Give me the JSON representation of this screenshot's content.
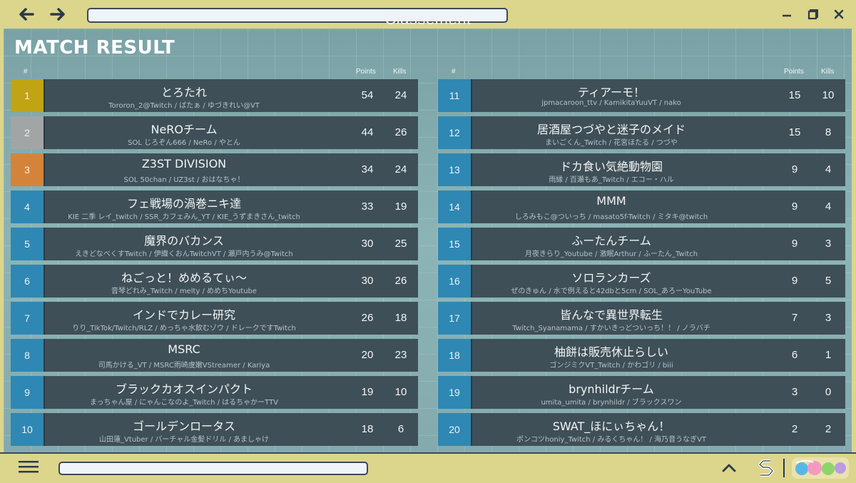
{
  "window": {
    "title": "Classement",
    "back_icon": "arrow-left-icon",
    "forward_icon": "arrow-right-icon",
    "url_value": "",
    "controls": [
      "minimize-icon",
      "maximize-icon",
      "close-icon"
    ]
  },
  "page": {
    "heading": "MATCH RESULT",
    "col_rank": "#",
    "col_points": "Points",
    "col_kills": "Kills"
  },
  "colors": {
    "gold": "#c0a414",
    "silver": "#a2a5a6",
    "bronze": "#d4843a",
    "blue": "#2e88b3"
  },
  "left": [
    {
      "rank": "1",
      "team": "とろたれ",
      "players": "Tororon_2@Twitch / ばたぁ / ゆづきれい@VT",
      "points": "54",
      "kills": "24",
      "color": "gold"
    },
    {
      "rank": "2",
      "team": "NeROチーム",
      "players": "SOL じろぞん666 / NeRo / やとん",
      "points": "44",
      "kills": "26",
      "color": "silver"
    },
    {
      "rank": "3",
      "team": "Z3ST DIVISION",
      "players": "SOL 50chan / UZ3st / おはなちゃ！",
      "points": "34",
      "kills": "24",
      "color": "bronze"
    },
    {
      "rank": "4",
      "team": "フェ戦場の渦巻ニキ達",
      "players": "KIE 二季 レイ_twitch / SSR_カフェみん_YT / KIE_うずまきさん_twitch",
      "points": "33",
      "kills": "19",
      "color": "blue"
    },
    {
      "rank": "5",
      "team": "魔界のバカンス",
      "players": "えきどなべくすTwitch / 伊織くおんTwitchVT / 瀬戸内うみ@Twitch",
      "points": "30",
      "kills": "25",
      "color": "blue"
    },
    {
      "rank": "6",
      "team": "ねごっと！めめるてぃ〜",
      "players": "音琴どれみ_Twitch / melty / めめちYoutube",
      "points": "30",
      "kills": "26",
      "color": "blue"
    },
    {
      "rank": "7",
      "team": "インドでカレー研究",
      "players": "りり_TikTok/Twitch/RLZ / めっちゃ水飲むゾウ / ドレークですTwitch",
      "points": "26",
      "kills": "18",
      "color": "blue"
    },
    {
      "rank": "8",
      "team": "MSRC",
      "players": "司馬かける_VT / MSRC雨崎虞嫩VStreamer / Kariya",
      "points": "20",
      "kills": "23",
      "color": "blue"
    },
    {
      "rank": "9",
      "team": "ブラックカオスインパクト",
      "players": "まっちゃん屋 / にゃんこなのよ_Twitch / はるちゃかーTTV",
      "points": "19",
      "kills": "10",
      "color": "blue"
    },
    {
      "rank": "10",
      "team": "ゴールデンロータス",
      "players": "山田蓮_Vtuber / バーチャル金髪ドリル / あましゃけ",
      "points": "18",
      "kills": "6",
      "color": "blue"
    }
  ],
  "right": [
    {
      "rank": "11",
      "team": "ティアーモ！",
      "players": "jpmacaroon_ttv / KamikitaYuuVT / nako",
      "points": "15",
      "kills": "10",
      "color": "blue"
    },
    {
      "rank": "12",
      "team": "居酒屋つづやと迷子のメイド",
      "players": "まいごくん_Twitch / 花宮ほたる / つづや",
      "points": "15",
      "kills": "8",
      "color": "blue"
    },
    {
      "rank": "13",
      "team": "ドカ食い気絶動物園",
      "players": "雨縁 / 百瀬もあ_Twitch / エコー・ハル",
      "points": "9",
      "kills": "4",
      "color": "blue"
    },
    {
      "rank": "14",
      "team": "MMM",
      "players": "しろみもこ@ついっち / masato5f-Twitch / ミタキ@twitch",
      "points": "9",
      "kills": "4",
      "color": "blue"
    },
    {
      "rank": "15",
      "team": "ふーたんチーム",
      "players": "月夜きらり_Youtube / 激眠Arthur / ふーたん_Twitch",
      "points": "9",
      "kills": "3",
      "color": "blue"
    },
    {
      "rank": "16",
      "team": "ソロランカーズ",
      "players": "ぜのきゅん / 水で例えると42dbと5cm / SOL_あろーYouTube",
      "points": "9",
      "kills": "5",
      "color": "blue"
    },
    {
      "rank": "17",
      "team": "皆んなで異世界転生",
      "players": "Twitch_Syanamama / すかいきっどついっち！！ / ノラバチ",
      "points": "7",
      "kills": "3",
      "color": "blue"
    },
    {
      "rank": "18",
      "team": "柚餅は販売休止らしい",
      "players": "ゴンジミクVT_Twitch / かわゴリ / biii",
      "points": "6",
      "kills": "1",
      "color": "blue"
    },
    {
      "rank": "19",
      "team": "brynhildrチーム",
      "players": "umita_umita / brynhildr / ブラックスワン",
      "points": "3",
      "kills": "0",
      "color": "blue"
    },
    {
      "rank": "20",
      "team": "SWAT_ほにぃちゃん！",
      "players": "ポンコツhoniy_Twitch / みるくちゃん！ / 海乃音うなぎVT",
      "points": "2",
      "kills": "2",
      "color": "blue"
    }
  ],
  "bottom": {
    "menu_icon": "hamburger-menu-icon",
    "url_value": "",
    "up_icon": "chevron-up-icon",
    "logo_icon": "s-logo-icon",
    "brand_logo": "event-brand-logo"
  }
}
